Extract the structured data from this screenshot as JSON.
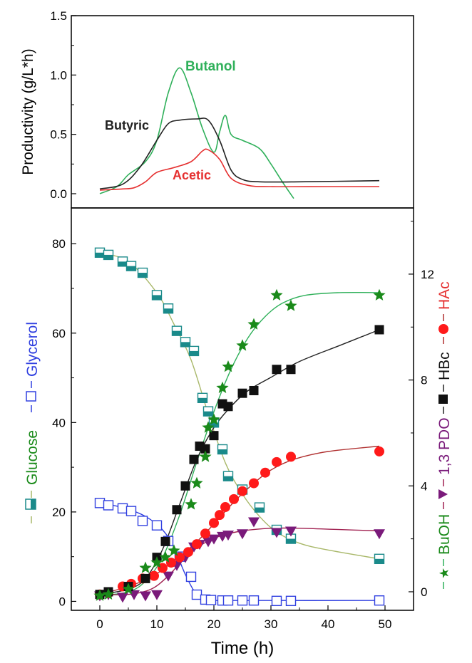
{
  "chart_data": [
    {
      "type": "line",
      "ylabel": "Productivity (g/L*h)",
      "xlim": [
        -5,
        55
      ],
      "ylim": [
        -0.12,
        1.5
      ],
      "yticks": [
        "0.0",
        "0.5",
        "1.0",
        "1.5"
      ],
      "yticks_values": [
        0,
        0.5,
        1.0,
        1.5
      ],
      "series": [
        {
          "name": "Butanol",
          "color": "#2fb05a",
          "points": [
            [
              0,
              0.0
            ],
            [
              3,
              0.06
            ],
            [
              5,
              0.16
            ],
            [
              8,
              0.27
            ],
            [
              10,
              0.45
            ],
            [
              12,
              0.85
            ],
            [
              14,
              1.06
            ],
            [
              16,
              0.85
            ],
            [
              18,
              0.55
            ],
            [
              20,
              0.35
            ],
            [
              21,
              0.52
            ],
            [
              22,
              0.66
            ],
            [
              23,
              0.5
            ],
            [
              25,
              0.45
            ],
            [
              28,
              0.38
            ],
            [
              30,
              0.25
            ],
            [
              32,
              0.1
            ],
            [
              34,
              -0.04
            ]
          ]
        },
        {
          "name": "Butyric",
          "color": "#222222",
          "points": [
            [
              0,
              0.04
            ],
            [
              4,
              0.08
            ],
            [
              7,
              0.22
            ],
            [
              10,
              0.45
            ],
            [
              12,
              0.59
            ],
            [
              14,
              0.62
            ],
            [
              17,
              0.63
            ],
            [
              19,
              0.62
            ],
            [
              21,
              0.45
            ],
            [
              23,
              0.2
            ],
            [
              25,
              0.12
            ],
            [
              28,
              0.1
            ],
            [
              35,
              0.1
            ],
            [
              49,
              0.11
            ]
          ]
        },
        {
          "name": "Acetic",
          "color": "#e53030",
          "points": [
            [
              0,
              0.03
            ],
            [
              4,
              0.04
            ],
            [
              6,
              0.05
            ],
            [
              8,
              0.1
            ],
            [
              10,
              0.18
            ],
            [
              13,
              0.22
            ],
            [
              16,
              0.27
            ],
            [
              18,
              0.36
            ],
            [
              19,
              0.37
            ],
            [
              21,
              0.29
            ],
            [
              23,
              0.13
            ],
            [
              26,
              0.07
            ],
            [
              30,
              0.06
            ],
            [
              40,
              0.06
            ],
            [
              49,
              0.06
            ]
          ]
        }
      ]
    },
    {
      "type": "scatter",
      "xlabel": "Time (h)",
      "ylabel_left": [
        "Glucose",
        "Glycerol"
      ],
      "ylabel_right": [
        "BuOH",
        "1,3 PDO",
        "HBc",
        "HAc"
      ],
      "xlim": [
        -5,
        55
      ],
      "ylim_left": [
        -2,
        88
      ],
      "ylim_right": [
        -0.7,
        14.5
      ],
      "xticks": [
        "0",
        "10",
        "20",
        "30",
        "40",
        "50"
      ],
      "xticks_values": [
        0,
        10,
        20,
        30,
        40,
        50
      ],
      "yticks_left": [
        "0",
        "20",
        "40",
        "60",
        "80"
      ],
      "yticks_left_values": [
        0,
        20,
        40,
        60,
        80
      ],
      "yticks_right": [
        "0",
        "4",
        "8",
        "12"
      ],
      "yticks_right_values": [
        0,
        4,
        8,
        12
      ],
      "series": [
        {
          "name": "Glucose",
          "axis": "left",
          "marker": "half-square",
          "color": "#1a8a8a",
          "line_color": "#a9b86a",
          "points": [
            [
              0,
              78
            ],
            [
              1.5,
              77.5
            ],
            [
              4,
              76
            ],
            [
              5.5,
              75
            ],
            [
              7.5,
              73.5
            ],
            [
              10,
              68.5
            ],
            [
              12,
              65.5
            ],
            [
              13.5,
              60.5
            ],
            [
              15,
              58
            ],
            [
              16.5,
              56
            ],
            [
              18,
              45.5
            ],
            [
              19,
              42.5
            ],
            [
              20,
              40
            ],
            [
              21.5,
              34
            ],
            [
              22.5,
              28
            ],
            [
              25,
              25
            ],
            [
              28,
              21
            ],
            [
              31,
              16
            ],
            [
              33.5,
              14
            ],
            [
              49,
              9.5
            ]
          ],
          "curve": [
            [
              0,
              78
            ],
            [
              5,
              76
            ],
            [
              10,
              69
            ],
            [
              13,
              62
            ],
            [
              16,
              54
            ],
            [
              19,
              42
            ],
            [
              22,
              31
            ],
            [
              25,
              24
            ],
            [
              28,
              19
            ],
            [
              31,
              15.5
            ],
            [
              35,
              13
            ],
            [
              40,
              11.5
            ],
            [
              49,
              9.5
            ]
          ]
        },
        {
          "name": "Glycerol",
          "axis": "left",
          "marker": "open-square",
          "color": "#3040e0",
          "line_color": "#3040e0",
          "points": [
            [
              0,
              22
            ],
            [
              1.5,
              21.5
            ],
            [
              4,
              20.8
            ],
            [
              5.5,
              20.2
            ],
            [
              7.5,
              18
            ],
            [
              10,
              17
            ],
            [
              12,
              13.5
            ],
            [
              14,
              10
            ],
            [
              16,
              5.5
            ],
            [
              17,
              1.5
            ],
            [
              18.5,
              0.4
            ],
            [
              19.5,
              0.3
            ],
            [
              21.5,
              0.2
            ],
            [
              22.5,
              0.2
            ],
            [
              25,
              0.2
            ],
            [
              27,
              0.2
            ],
            [
              31,
              0.1
            ],
            [
              33.5,
              0.1
            ],
            [
              49,
              0.2
            ]
          ],
          "curve": [
            [
              0,
              22
            ],
            [
              4,
              21
            ],
            [
              8,
              19
            ],
            [
              11,
              16
            ],
            [
              13,
              12
            ],
            [
              15,
              6
            ],
            [
              17,
              1.5
            ],
            [
              19,
              0.3
            ],
            [
              25,
              0.2
            ],
            [
              49,
              0.2
            ]
          ]
        },
        {
          "name": "BuOH",
          "axis": "right",
          "marker": "star",
          "color": "#1a8a1a",
          "line_color": "#2fb05a",
          "points": [
            [
              0,
              -0.15
            ],
            [
              1.5,
              -0.1
            ],
            [
              5,
              0.1
            ],
            [
              8,
              0.9
            ],
            [
              10,
              1.1
            ],
            [
              11.5,
              1.3
            ],
            [
              13,
              1.55
            ],
            [
              16,
              3.3
            ],
            [
              17,
              4.1
            ],
            [
              18.5,
              5.1
            ],
            [
              19,
              6.2
            ],
            [
              20,
              6.5
            ],
            [
              21.5,
              7.7
            ],
            [
              22.5,
              8.5
            ],
            [
              25,
              9.3
            ],
            [
              27,
              10.1
            ],
            [
              31,
              11.2
            ],
            [
              33.5,
              10.8
            ],
            [
              49,
              11.2
            ]
          ],
          "curve": [
            [
              0,
              -0.15
            ],
            [
              5,
              0
            ],
            [
              8,
              0.4
            ],
            [
              11,
              1.3
            ],
            [
              14,
              2.9
            ],
            [
              17,
              4.9
            ],
            [
              20,
              6.8
            ],
            [
              23,
              8.4
            ],
            [
              26,
              9.6
            ],
            [
              29,
              10.4
            ],
            [
              32,
              10.9
            ],
            [
              36,
              11.2
            ],
            [
              42,
              11.3
            ],
            [
              49,
              11.3
            ]
          ]
        },
        {
          "name": "1,3 PDO",
          "axis": "right",
          "marker": "down-triangle",
          "color": "#7a1a7a",
          "line_color": "#a02050",
          "points": [
            [
              0,
              -0.15
            ],
            [
              1.5,
              -0.1
            ],
            [
              4,
              -0.2
            ],
            [
              6,
              -0.1
            ],
            [
              8,
              -0.15
            ],
            [
              10,
              -0.1
            ],
            [
              12,
              0.6
            ],
            [
              13.5,
              1.0
            ],
            [
              15,
              1.3
            ],
            [
              16.5,
              1.7
            ],
            [
              17.5,
              1.8
            ],
            [
              19,
              1.9
            ],
            [
              20,
              2.0
            ],
            [
              21.5,
              2.1
            ],
            [
              22.5,
              2.15
            ],
            [
              25,
              2.2
            ],
            [
              27,
              2.65
            ],
            [
              31,
              2.25
            ],
            [
              33.5,
              2.3
            ],
            [
              49,
              2.2
            ]
          ],
          "curve": [
            [
              0,
              -0.1
            ],
            [
              5,
              -0.1
            ],
            [
              9,
              0.1
            ],
            [
              12,
              0.6
            ],
            [
              15,
              1.3
            ],
            [
              18,
              1.8
            ],
            [
              21,
              2.1
            ],
            [
              25,
              2.3
            ],
            [
              30,
              2.4
            ],
            [
              35,
              2.4
            ],
            [
              42,
              2.35
            ],
            [
              49,
              2.3
            ]
          ]
        },
        {
          "name": "HBc",
          "axis": "right",
          "marker": "filled-square",
          "color": "#111111",
          "line_color": "#222222",
          "points": [
            [
              0,
              -0.1
            ],
            [
              1.5,
              0.0
            ],
            [
              5,
              0.2
            ],
            [
              8,
              0.5
            ],
            [
              10,
              1.3
            ],
            [
              11.5,
              1.9
            ],
            [
              13.5,
              3.1
            ],
            [
              15,
              4.0
            ],
            [
              16.5,
              5.0
            ],
            [
              17.5,
              5.5
            ],
            [
              18.5,
              5.4
            ],
            [
              20,
              5.9
            ],
            [
              21.5,
              7.1
            ],
            [
              22.5,
              7.0
            ],
            [
              25,
              7.5
            ],
            [
              27,
              7.6
            ],
            [
              31,
              8.4
            ],
            [
              33.5,
              8.4
            ],
            [
              49,
              9.9
            ]
          ],
          "curve": [
            [
              0,
              -0.1
            ],
            [
              5,
              0.1
            ],
            [
              8,
              0.5
            ],
            [
              11,
              1.6
            ],
            [
              14,
              3.3
            ],
            [
              17,
              5.0
            ],
            [
              20,
              6.2
            ],
            [
              23,
              7.0
            ],
            [
              26,
              7.6
            ],
            [
              30,
              8.1
            ],
            [
              35,
              8.7
            ],
            [
              42,
              9.3
            ],
            [
              49,
              9.9
            ]
          ]
        },
        {
          "name": "HAc",
          "axis": "right",
          "marker": "filled-circle",
          "color": "#ff1a1a",
          "line_color": "#b03030",
          "points": [
            [
              0,
              -0.1
            ],
            [
              1.5,
              -0.05
            ],
            [
              4,
              0.2
            ],
            [
              5.5,
              0.3
            ],
            [
              7.5,
              0.5
            ],
            [
              9.5,
              0.6
            ],
            [
              11,
              0.9
            ],
            [
              12.5,
              1.1
            ],
            [
              14,
              1.3
            ],
            [
              15.5,
              1.5
            ],
            [
              17,
              1.8
            ],
            [
              18.5,
              2.2
            ],
            [
              20,
              2.6
            ],
            [
              21,
              2.9
            ],
            [
              22,
              3.2
            ],
            [
              23.5,
              3.5
            ],
            [
              25,
              3.8
            ],
            [
              27,
              4.1
            ],
            [
              29,
              4.5
            ],
            [
              31,
              4.9
            ],
            [
              33.5,
              5.1
            ],
            [
              49,
              5.3
            ]
          ],
          "curve": [
            [
              0,
              -0.1
            ],
            [
              5,
              0.2
            ],
            [
              9,
              0.55
            ],
            [
              12,
              1.0
            ],
            [
              15,
              1.5
            ],
            [
              18,
              2.1
            ],
            [
              21,
              2.8
            ],
            [
              24,
              3.5
            ],
            [
              27,
              4.1
            ],
            [
              30,
              4.6
            ],
            [
              34,
              5.0
            ],
            [
              40,
              5.3
            ],
            [
              49,
              5.5
            ]
          ]
        }
      ]
    }
  ],
  "labels": {
    "butanol": "Butanol",
    "butyric": "Butyric",
    "acetic": "Acetic"
  }
}
